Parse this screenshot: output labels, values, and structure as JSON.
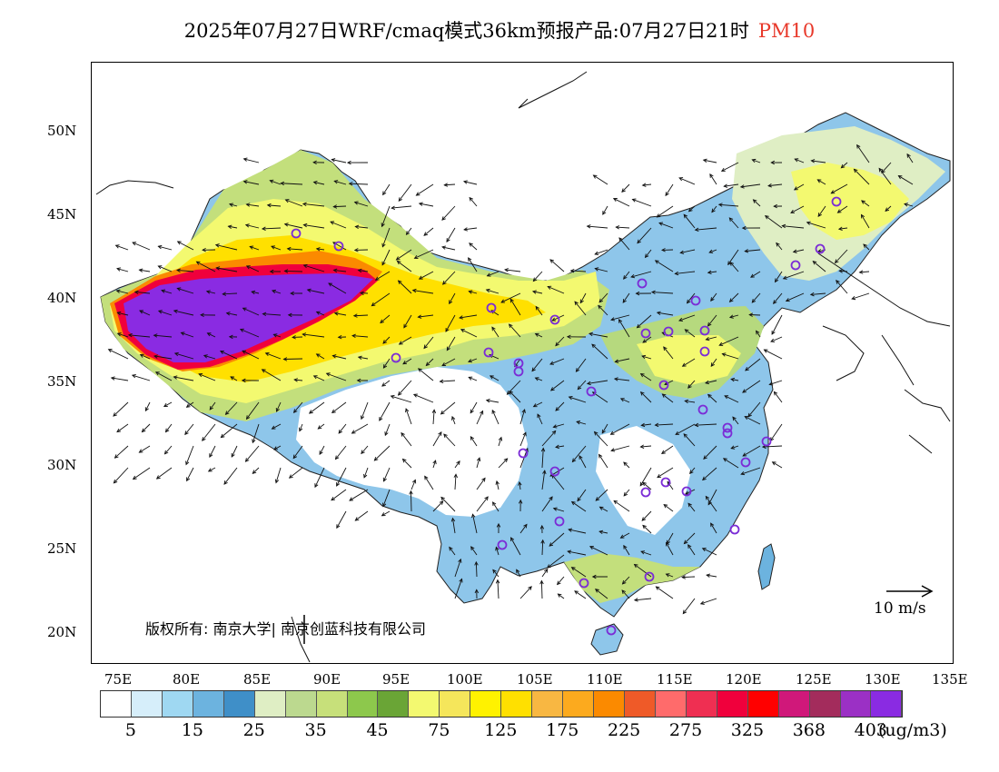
{
  "title": {
    "main": "2025年07月27日WRF/cmaq模式36km预报产品:07月27日21时",
    "variable": "PM10"
  },
  "map": {
    "lat_labels": [
      "50N",
      "45N",
      "40N",
      "35N",
      "30N",
      "25N",
      "20N"
    ],
    "lon_labels": [
      "75E",
      "80E",
      "85E",
      "90E",
      "95E",
      "100E",
      "105E",
      "110E",
      "115E",
      "120E",
      "125E",
      "130E",
      "135E"
    ],
    "copyright": "版权所有: 南京大学| 南京创蓝科技有限公司",
    "wind_reference": "10 m/s"
  },
  "colorbar": {
    "colors": [
      "#ffffff",
      "#d6eefa",
      "#9fd8f2",
      "#6cb3df",
      "#3f8fc8",
      "#dfeec4",
      "#bcd98f",
      "#c7e07a",
      "#8dc84c",
      "#6aa536",
      "#f3f970",
      "#f5e65b",
      "#fff200",
      "#ffe000",
      "#f8b742",
      "#fcaa1e",
      "#fb8a00",
      "#ef5a28",
      "#ff6b6b",
      "#ef2f52",
      "#f0003c",
      "#ff0000",
      "#d0187a",
      "#a32c5c",
      "#9b30c5",
      "#8a2be2"
    ],
    "labels": [
      "5",
      "15",
      "25",
      "35",
      "45",
      "75",
      "125",
      "175",
      "225",
      "275",
      "325",
      "368",
      "403"
    ],
    "unit": "(ug/m3)"
  }
}
